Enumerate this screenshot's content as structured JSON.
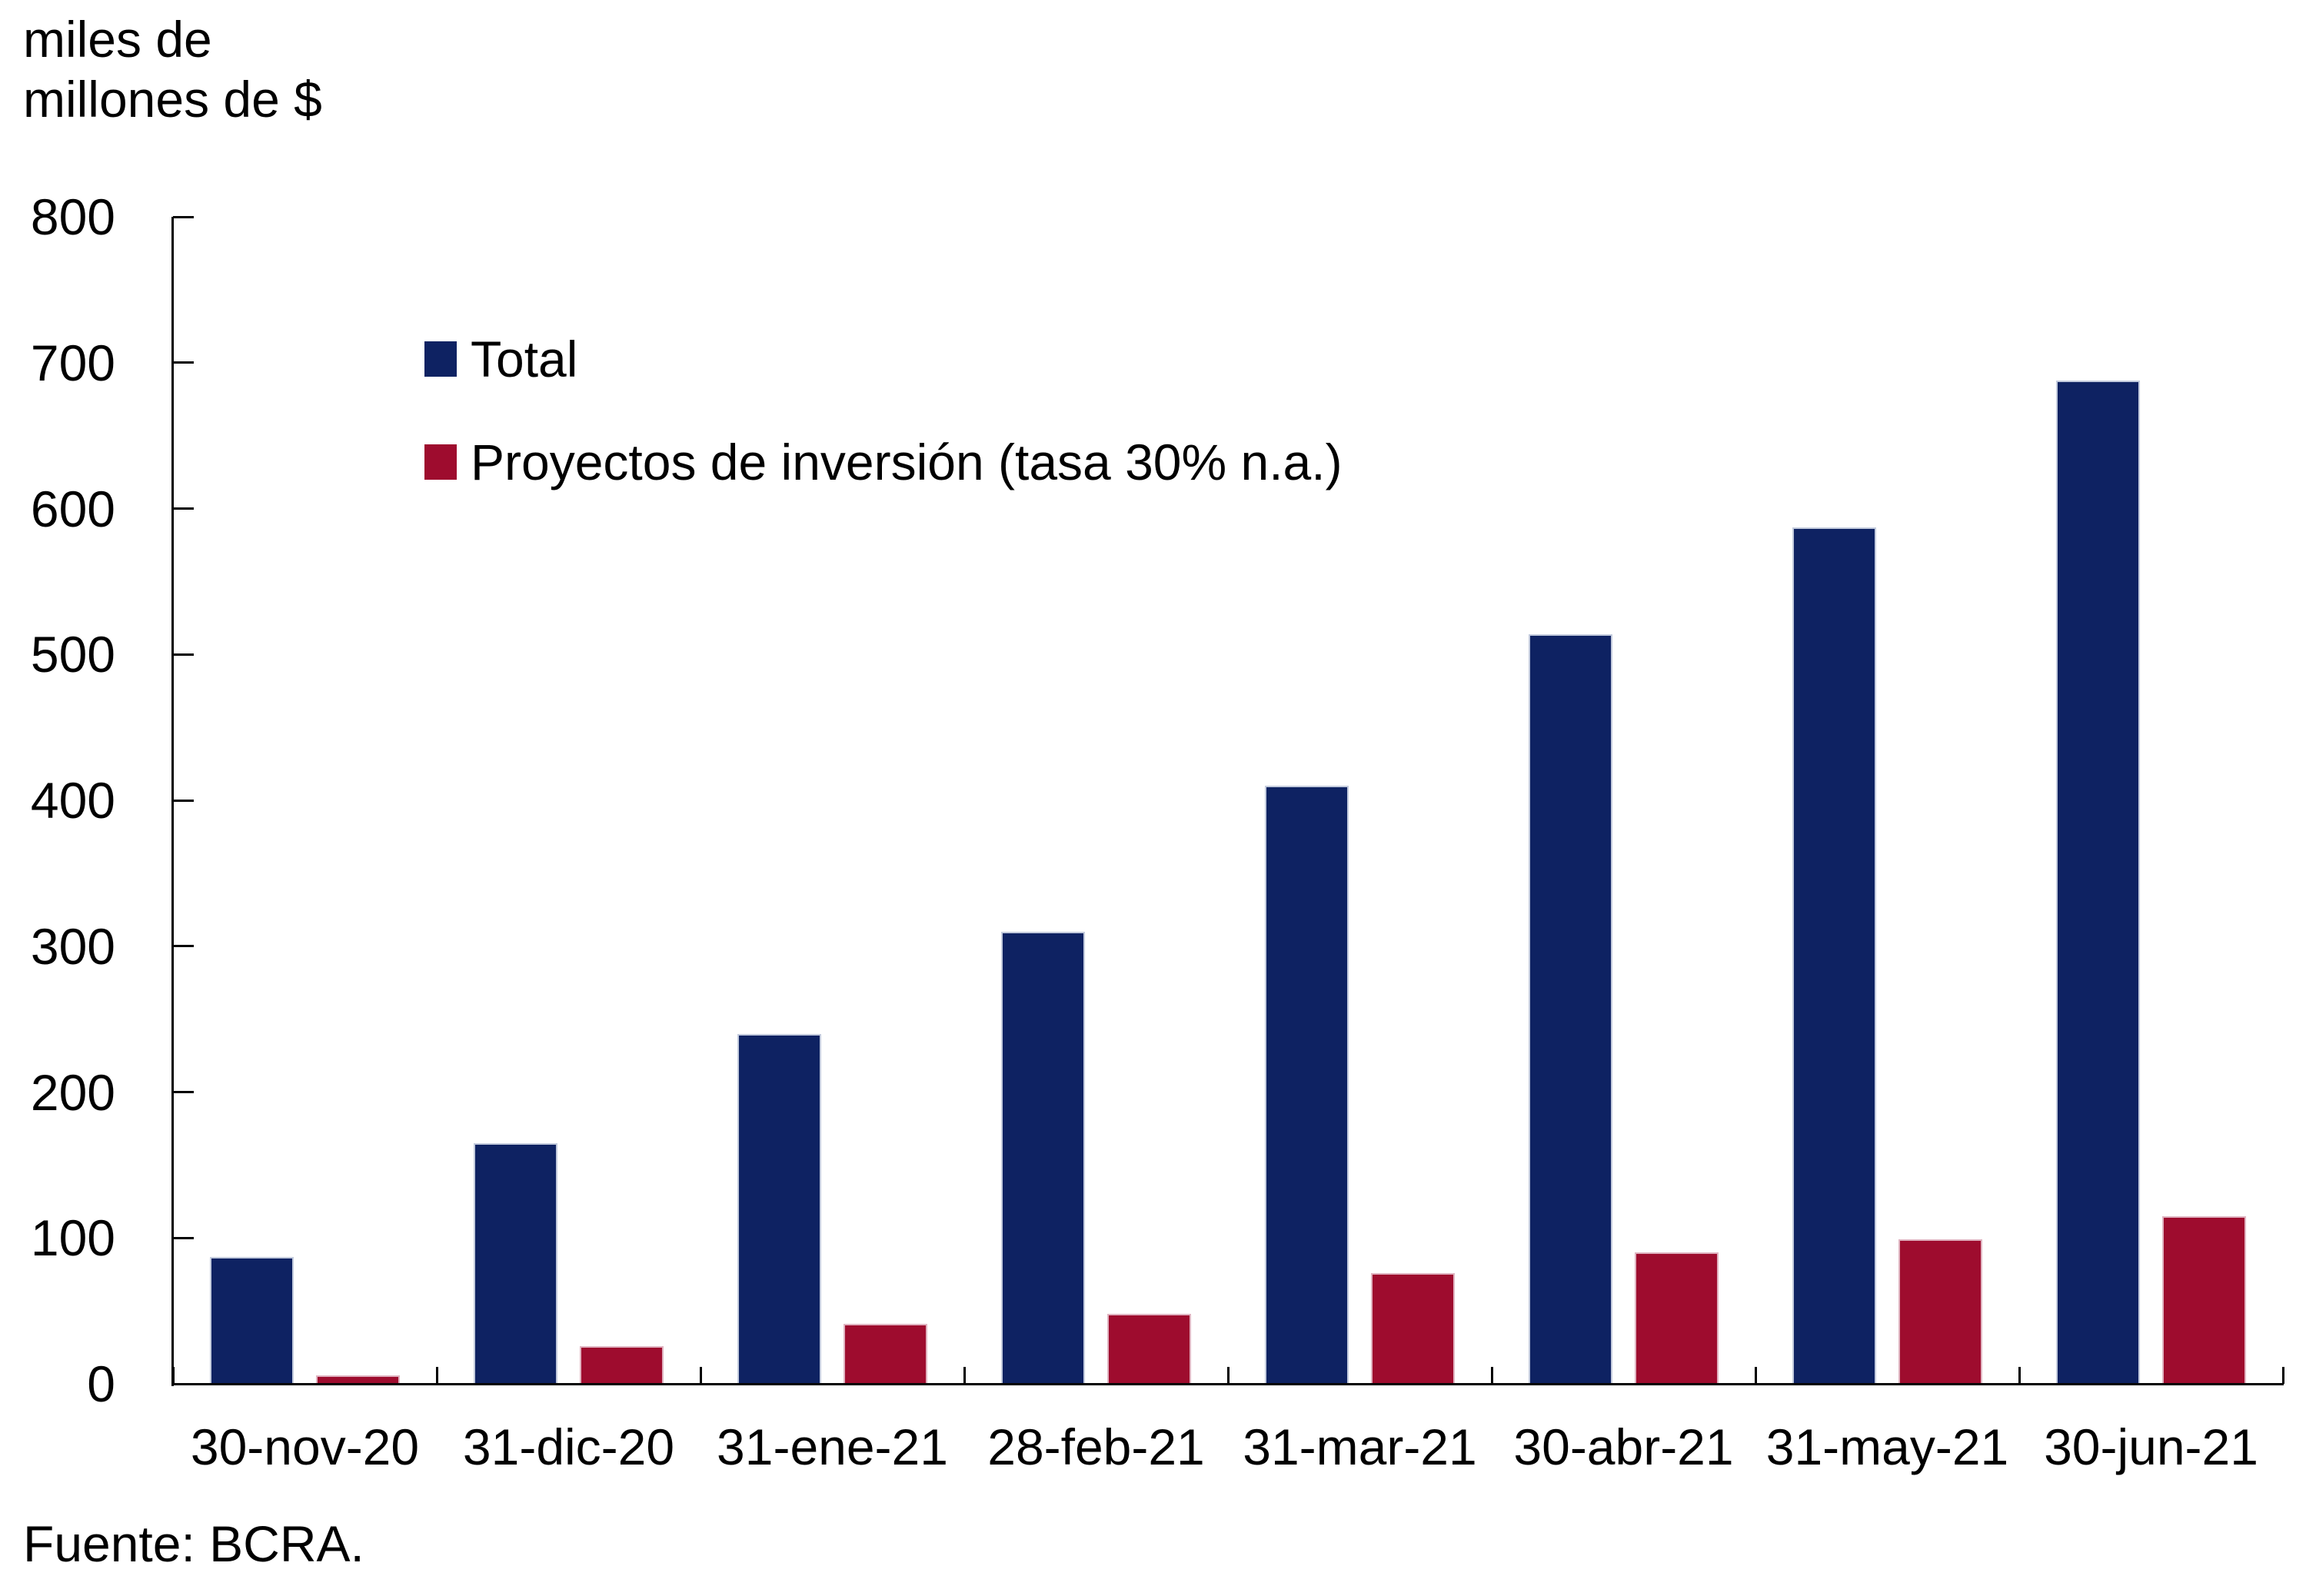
{
  "labels": {
    "unit_line1": "miles de",
    "unit_line2": "millones de $",
    "source": "Fuente: BCRA."
  },
  "chart_data": {
    "type": "bar",
    "title": "",
    "unit_label": "miles de millones de $",
    "categories": [
      "30-nov-20",
      "31-dic-20",
      "31-ene-21",
      "28-feb-21",
      "31-mar-21",
      "30-abr-21",
      "31-may-21",
      "30-jun-21"
    ],
    "series": [
      {
        "name": "Total",
        "color": "#0e2262",
        "border_color": "#c3cbdd",
        "values": [
          87,
          165,
          240,
          310,
          410,
          514,
          587,
          688
        ]
      },
      {
        "name": "Proyectos de inversión (tasa 30% n.a.)",
        "color": "#9e0c2e",
        "border_color": "#e0b4c1",
        "values": [
          6,
          26,
          41,
          48,
          76,
          90,
          99,
          115
        ]
      }
    ],
    "ylim": [
      0,
      800
    ],
    "ytick_step": 100,
    "yticks": [
      0,
      100,
      200,
      300,
      400,
      500,
      600,
      700,
      800
    ],
    "grid": false,
    "legend_position": "top-left-inside",
    "source": "Fuente: BCRA."
  }
}
